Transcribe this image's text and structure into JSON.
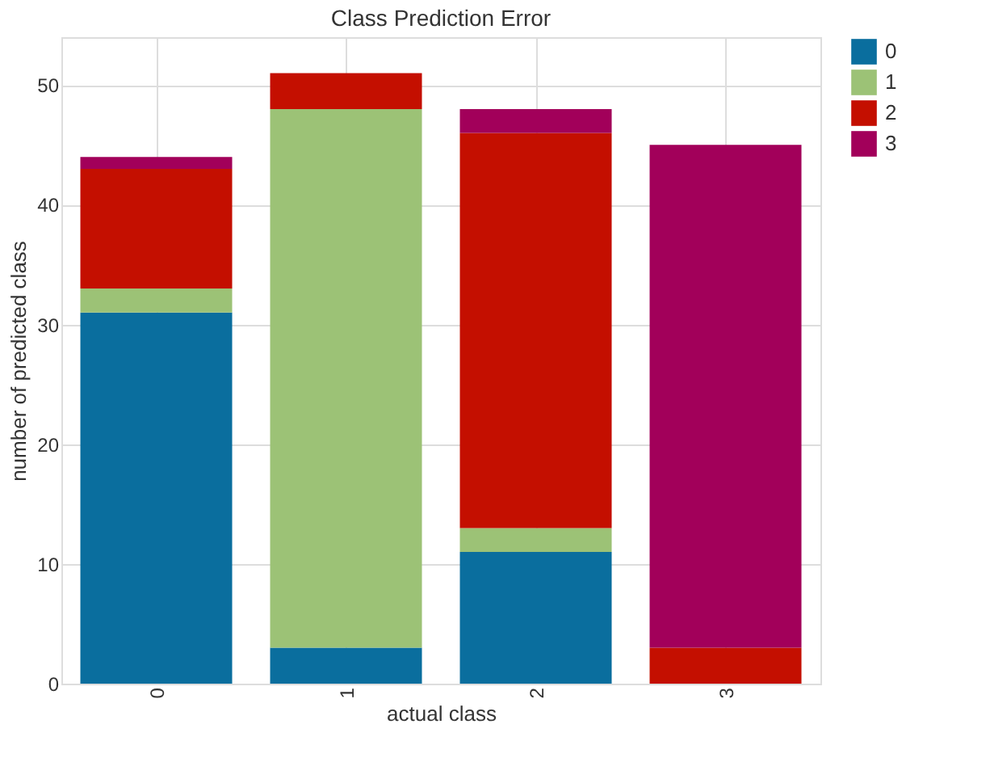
{
  "chart_data": {
    "type": "bar",
    "title": "Class Prediction Error",
    "xlabel": "actual class",
    "ylabel": "number of predicted class",
    "categories": [
      "0",
      "1",
      "2",
      "3"
    ],
    "stacked": true,
    "series": [
      {
        "name": "0",
        "color": "#0a6e9e",
        "values": [
          31,
          3,
          11,
          0
        ]
      },
      {
        "name": "1",
        "color": "#9cc276",
        "values": [
          2,
          45,
          2,
          0
        ]
      },
      {
        "name": "2",
        "color": "#c40f00",
        "values": [
          10,
          3,
          33,
          3
        ]
      },
      {
        "name": "3",
        "color": "#a2005a",
        "values": [
          1,
          0,
          2,
          42
        ]
      }
    ],
    "ylim": [
      0,
      54
    ],
    "yticks": [
      0,
      10,
      20,
      30,
      40,
      50
    ],
    "grid": true,
    "legend": "right"
  }
}
